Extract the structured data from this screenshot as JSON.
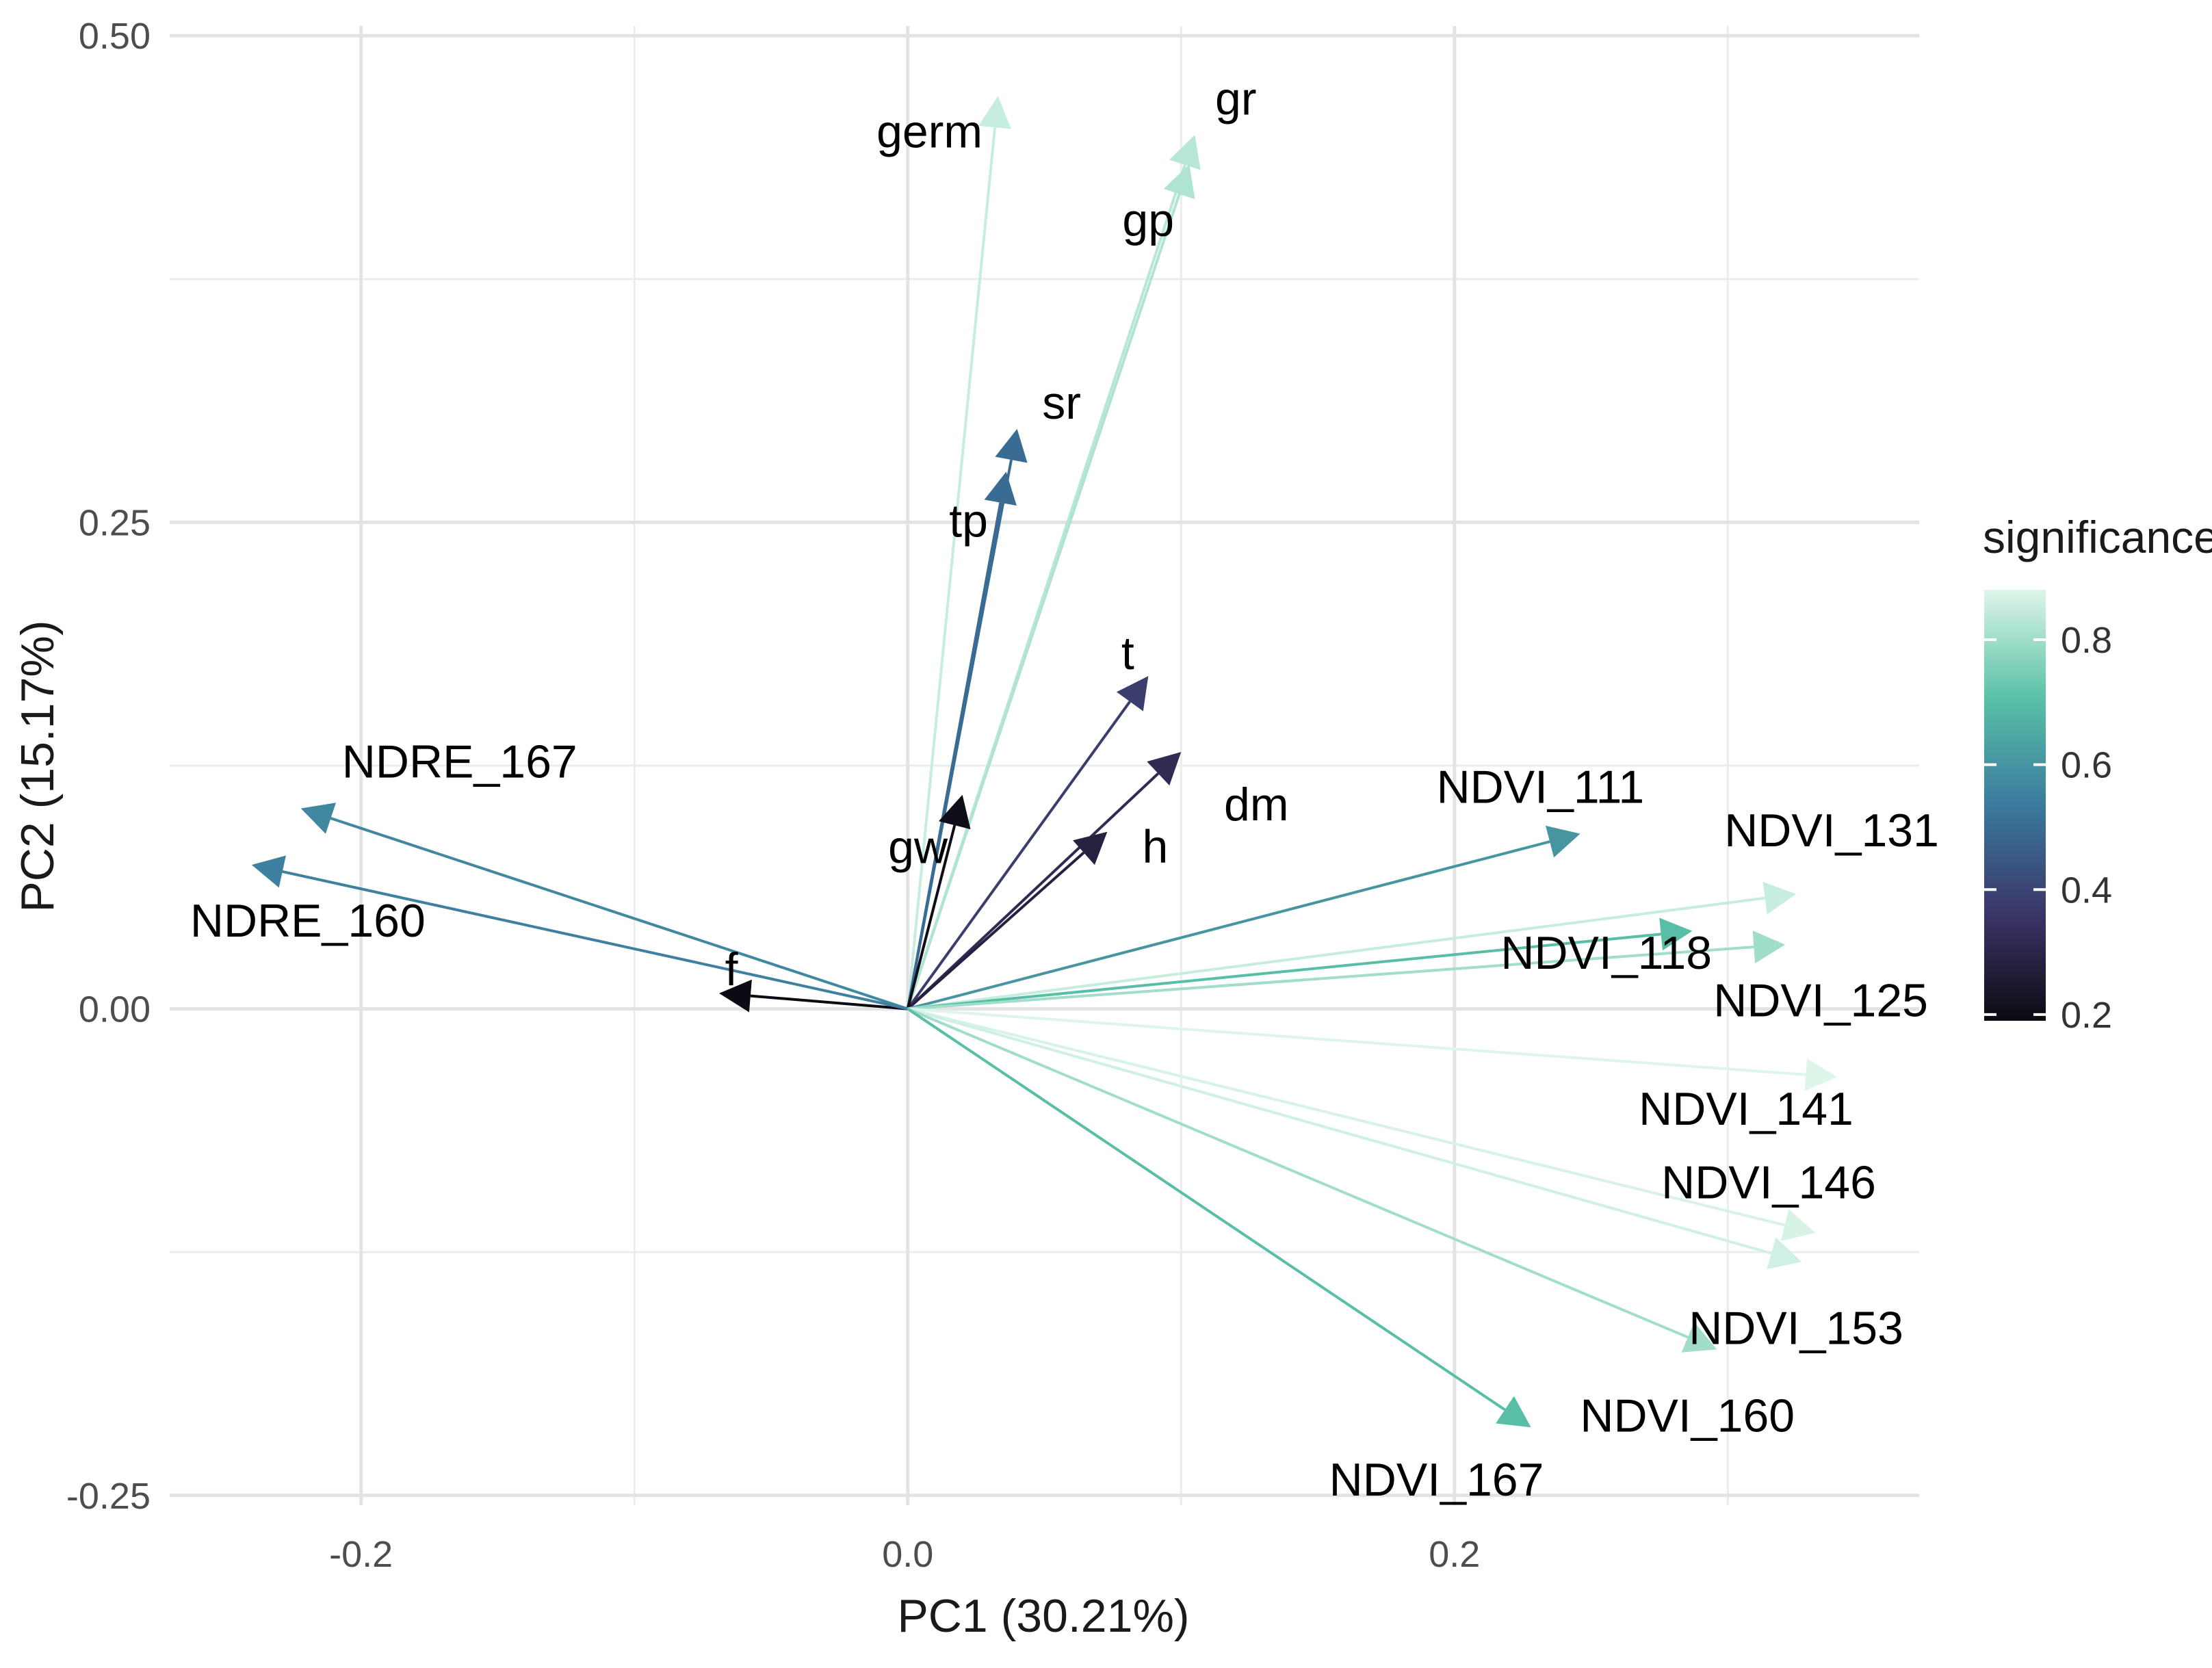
{
  "chart_data": {
    "type": "biplot",
    "title": "",
    "xlabel": "PC1 (30.21%)",
    "ylabel": "PC2 (15.17%)",
    "xlim": [
      -0.27,
      0.37
    ],
    "ylim": [
      -0.255,
      0.505
    ],
    "x_ticks": [
      {
        "value": -0.2,
        "label": "-0.2"
      },
      {
        "value": 0.0,
        "label": "0.0"
      },
      {
        "value": 0.2,
        "label": "0.2"
      }
    ],
    "y_ticks": [
      {
        "value": -0.25,
        "label": "-0.25"
      },
      {
        "value": 0.0,
        "label": "0.00"
      },
      {
        "value": 0.25,
        "label": "0.25"
      },
      {
        "value": 0.5,
        "label": "0.50"
      }
    ],
    "x_minor": [
      -0.1,
      0.1,
      0.3
    ],
    "y_minor": [
      -0.125,
      0.125,
      0.375
    ],
    "grid": true,
    "legend": {
      "title": "significance",
      "position": "right",
      "range": [
        0.19,
        0.88
      ],
      "ticks": [
        {
          "value": 0.2,
          "label": "0.2"
        },
        {
          "value": 0.4,
          "label": "0.4"
        },
        {
          "value": 0.6,
          "label": "0.6"
        },
        {
          "value": 0.8,
          "label": "0.8"
        }
      ]
    },
    "color_scale": [
      {
        "stop": 0.0,
        "color": "#0c0a12"
      },
      {
        "stop": 0.25,
        "color": "#3b3668"
      },
      {
        "stop": 0.5,
        "color": "#3a7a9e"
      },
      {
        "stop": 0.75,
        "color": "#59c1a6"
      },
      {
        "stop": 1.0,
        "color": "#def6ea"
      }
    ],
    "vectors": [
      {
        "name": "germ",
        "x": 0.033,
        "y": 0.469,
        "significance": 0.85
      },
      {
        "name": "gr",
        "x": 0.105,
        "y": 0.449,
        "significance": 0.83
      },
      {
        "name": "gp",
        "x": 0.103,
        "y": 0.434,
        "significance": 0.82
      },
      {
        "name": "sr",
        "x": 0.04,
        "y": 0.298,
        "significance": 0.5
      },
      {
        "name": "tp",
        "x": 0.036,
        "y": 0.276,
        "significance": 0.5
      },
      {
        "name": "t",
        "x": 0.088,
        "y": 0.171,
        "significance": 0.38
      },
      {
        "name": "dm",
        "x": 0.1,
        "y": 0.132,
        "significance": 0.32
      },
      {
        "name": "h",
        "x": 0.073,
        "y": 0.091,
        "significance": 0.28
      },
      {
        "name": "gw",
        "x": 0.02,
        "y": 0.11,
        "significance": 0.2
      },
      {
        "name": "f",
        "x": -0.069,
        "y": 0.008,
        "significance": 0.19
      },
      {
        "name": "NDRE_167",
        "x": -0.222,
        "y": 0.103,
        "significance": 0.57
      },
      {
        "name": "NDRE_160",
        "x": -0.24,
        "y": 0.074,
        "significance": 0.55
      },
      {
        "name": "NDVI_111",
        "x": 0.246,
        "y": 0.09,
        "significance": 0.6
      },
      {
        "name": "NDVI_131",
        "x": 0.325,
        "y": 0.059,
        "significance": 0.85
      },
      {
        "name": "NDVI_118",
        "x": 0.287,
        "y": 0.04,
        "significance": 0.7
      },
      {
        "name": "NDVI_125",
        "x": 0.321,
        "y": 0.033,
        "significance": 0.8
      },
      {
        "name": "NDVI_141",
        "x": 0.34,
        "y": -0.035,
        "significance": 0.88
      },
      {
        "name": "NDVI_146",
        "x": 0.332,
        "y": -0.115,
        "significance": 0.87
      },
      {
        "name": "NDVI_153",
        "x": 0.327,
        "y": -0.13,
        "significance": 0.86
      },
      {
        "name": "NDVI_160",
        "x": 0.296,
        "y": -0.175,
        "significance": 0.8
      },
      {
        "name": "NDVI_167",
        "x": 0.228,
        "y": -0.215,
        "significance": 0.7
      }
    ]
  }
}
